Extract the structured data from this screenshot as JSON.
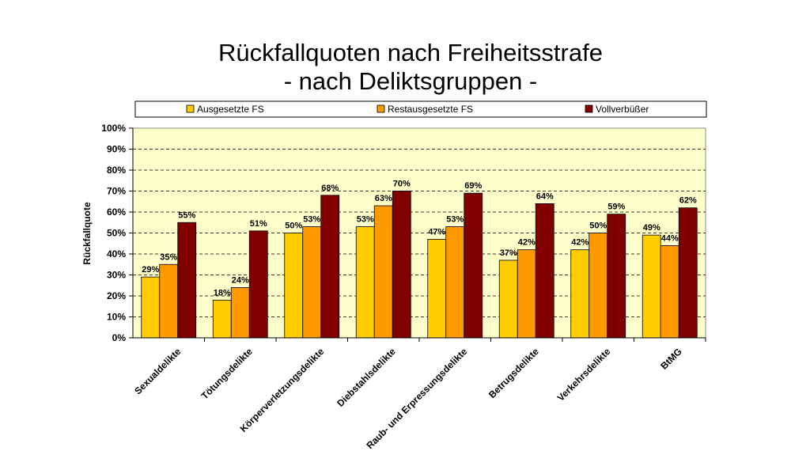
{
  "chart_data": {
    "type": "bar",
    "title_line1": "Rückfallquoten nach Freiheitsstrafe",
    "title_line2": "- nach Deliktsgruppen -",
    "ylabel": "Rückfallquote",
    "ylim": [
      0,
      100
    ],
    "yticks": [
      "0%",
      "10%",
      "20%",
      "30%",
      "40%",
      "50%",
      "60%",
      "70%",
      "80%",
      "90%",
      "100%"
    ],
    "grid": true,
    "legend_position": "top",
    "plot_background": "#ffffcc",
    "categories": [
      "Sexualdelikte",
      "Tötungsdelikte",
      "Körperverletzungsdelikte",
      "Diebstahlsdelikte",
      "Raub- und Erpressungsdelikte",
      "Betrugsdelikte",
      "Verkehrsdelikte",
      "BtMG"
    ],
    "series": [
      {
        "name": "Ausgesetzte FS",
        "color": "#ffcc00",
        "values": [
          29,
          18,
          50,
          53,
          47,
          37,
          42,
          49
        ],
        "labels": [
          "29%",
          "18%",
          "50%",
          "53%",
          "47%",
          "37%",
          "42%",
          "49%"
        ]
      },
      {
        "name": "Restausgesetzte FS",
        "color": "#ff9900",
        "values": [
          35,
          24,
          53,
          63,
          53,
          42,
          50,
          44
        ],
        "labels": [
          "35%",
          "24%",
          "53%",
          "63%",
          "53%",
          "42%",
          "50%",
          "44%"
        ]
      },
      {
        "name": "Vollverbüßer",
        "color": "#800000",
        "values": [
          55,
          51,
          68,
          70,
          69,
          64,
          59,
          62
        ],
        "labels": [
          "55%",
          "51%",
          "68%",
          "70%",
          "69%",
          "64%",
          "59%",
          "62%"
        ]
      }
    ]
  }
}
